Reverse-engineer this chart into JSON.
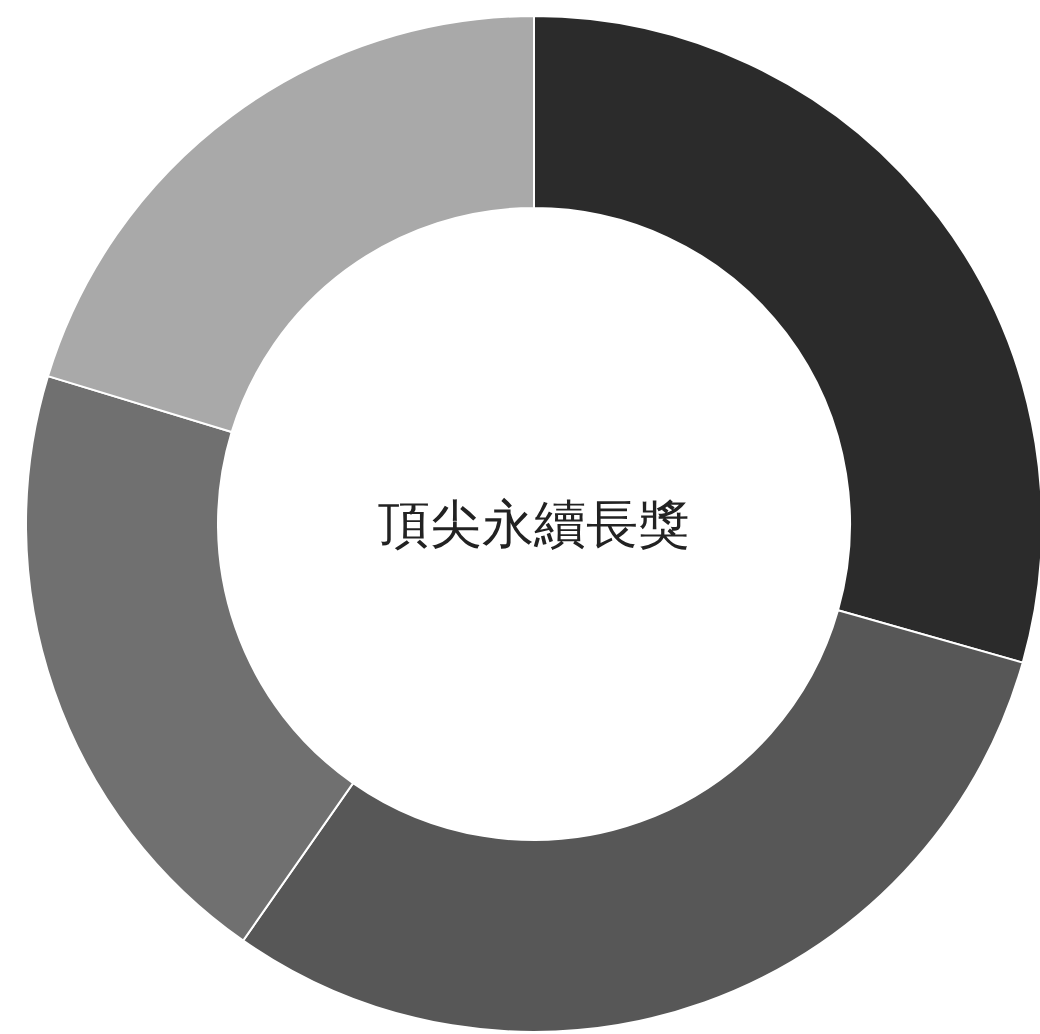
{
  "chart_data": {
    "type": "donut",
    "title": "頂尖永續長獎",
    "categories": [
      null,
      null,
      null,
      null
    ],
    "values": [
      29.4,
      30.3,
      20.0,
      20.3
    ],
    "colors": [
      "#2b2b2b",
      "#575757",
      "#707070",
      "#a9a9a9"
    ]
  }
}
